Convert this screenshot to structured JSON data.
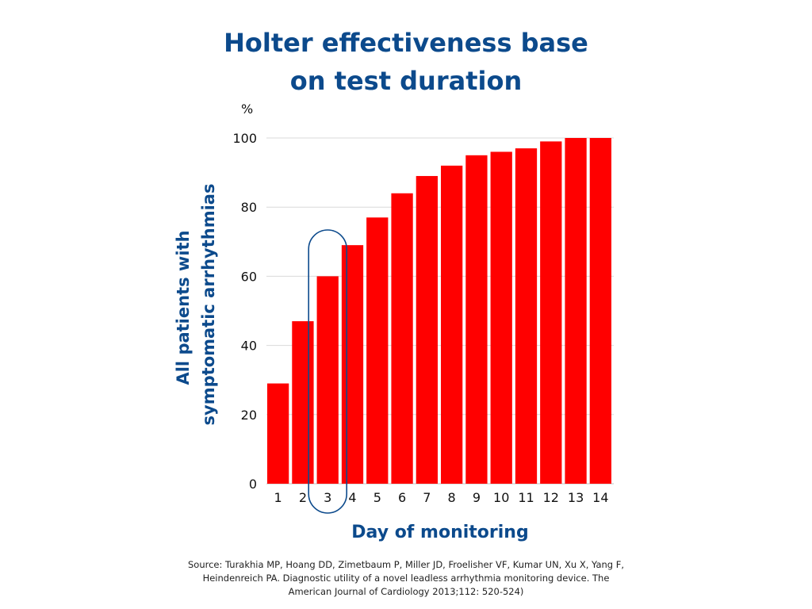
{
  "title_lines": [
    "Holter effectiveness base",
    "on test duration"
  ],
  "source": "Source: Turakhia MP, Hoang DD, Zimetbaum P, Miller JD, Froelisher VF, Kumar UN, Xu X, Yang F, Heindenreich PA. Diagnostic utility of a novel leadless arrhythmia monitoring device. The American Journal of Cardiology 2013;112: 520-524)",
  "colors": {
    "title": "#0c4a8c",
    "bar": "#ff0000",
    "grid": "#d9d9d9",
    "highlight": "#0c4a8c"
  },
  "chart_data": {
    "type": "bar",
    "title": "Holter effectiveness base on test duration",
    "xlabel": "Day of monitoring",
    "ylabel": "All patients with symptomatic arrhythmias",
    "yunit": "%",
    "categories": [
      "1",
      "2",
      "3",
      "4",
      "5",
      "6",
      "7",
      "8",
      "9",
      "10",
      "11",
      "12",
      "13",
      "14"
    ],
    "values": [
      29,
      47,
      60,
      69,
      77,
      84,
      89,
      92,
      95,
      96,
      97,
      99,
      100,
      100
    ],
    "ylim": [
      0,
      100
    ],
    "yticks": [
      0,
      20,
      40,
      60,
      80,
      100
    ],
    "grid": true,
    "legend": "none",
    "highlighted_category": "3"
  }
}
